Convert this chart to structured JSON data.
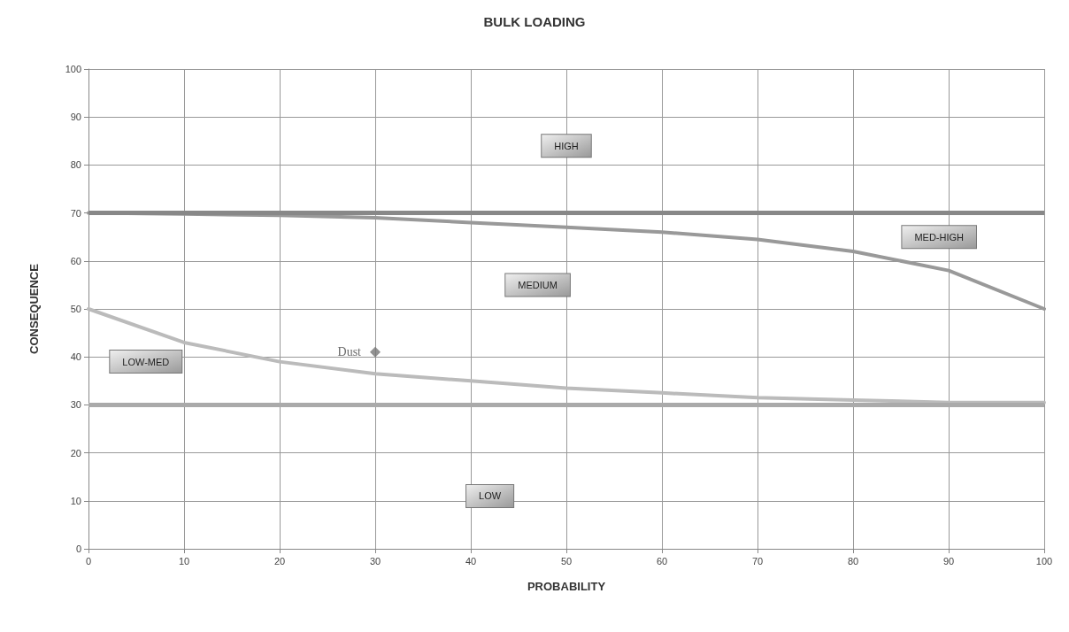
{
  "chart_data": {
    "type": "line",
    "title": "BULK LOADING",
    "xlabel": "PROBABILITY",
    "ylabel": "CONSEQUENCE",
    "xlim": [
      0,
      100
    ],
    "xticks": [
      0,
      10,
      20,
      30,
      40,
      50,
      60,
      70,
      80,
      90,
      100
    ],
    "ylim": [
      0,
      100
    ],
    "yticks": [
      0,
      10,
      20,
      30,
      40,
      50,
      60,
      70,
      80,
      90,
      100
    ],
    "grid": true,
    "legend": false,
    "marker": "none",
    "line_style": "solid",
    "series": [
      {
        "color": "#999999",
        "x": [
          0,
          10,
          20,
          30,
          40,
          50,
          60,
          70,
          80,
          90,
          100
        ],
        "values": [
          70,
          69.8,
          69.5,
          69,
          68,
          67,
          66,
          64.5,
          62,
          58,
          50
        ]
      },
      {
        "color": "#bbbbbb",
        "x": [
          0,
          10,
          20,
          30,
          40,
          50,
          60,
          70,
          80,
          90,
          100
        ],
        "values": [
          50,
          43,
          39,
          36.5,
          35,
          33.5,
          32.5,
          31.5,
          31,
          30.5,
          30.5
        ]
      },
      {
        "type": "scatter",
        "name": "Dust",
        "color": "#777777",
        "marker": "diamond",
        "x": [
          30
        ],
        "values": [
          41
        ]
      }
    ],
    "ref_lines": [
      {
        "axis": "y",
        "value": 70,
        "color": "#888888"
      },
      {
        "axis": "y",
        "value": 30,
        "color": "#aaaaaa"
      }
    ],
    "annotations": [
      "HIGH",
      "MED-HIGH",
      "MEDIUM",
      "LOW-MED",
      "LOW"
    ]
  }
}
